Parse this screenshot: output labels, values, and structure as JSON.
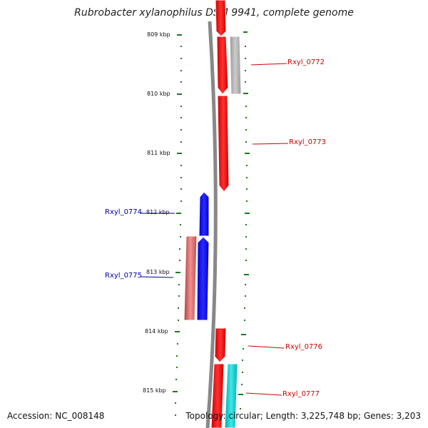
{
  "title": "Rubrobacter xylanophilus DSM 9941, complete genome",
  "footer": {
    "accession": "Accession: NC_008148",
    "topology": "Topology: circular; Length: 3,225,748 bp; Genes: 3,203"
  },
  "scale_labels": [
    "809 kbp",
    "810 kbp",
    "811 kbp",
    "812 kbp",
    "813 kbp",
    "814 kbp",
    "815 kbp"
  ],
  "gene_labels": {
    "rxyl_0772": "Rxyl_0772",
    "rxyl_0773": "Rxyl_0773",
    "rxyl_0774": "Rxyl_0774",
    "rxyl_0775": "Rxyl_0775",
    "rxyl_0776": "Rxyl_0776",
    "rxyl_0777": "Rxyl_0777"
  },
  "colors": {
    "forward_gene": "#ff0000",
    "reverse_gene": "#0000ff",
    "pseudo_light_red": "#e57373",
    "grey_feature": "#aaaaaa",
    "cyan_feature": "#00cccc",
    "backbone": "#888888",
    "scale_dots": "#1a7a1a"
  }
}
